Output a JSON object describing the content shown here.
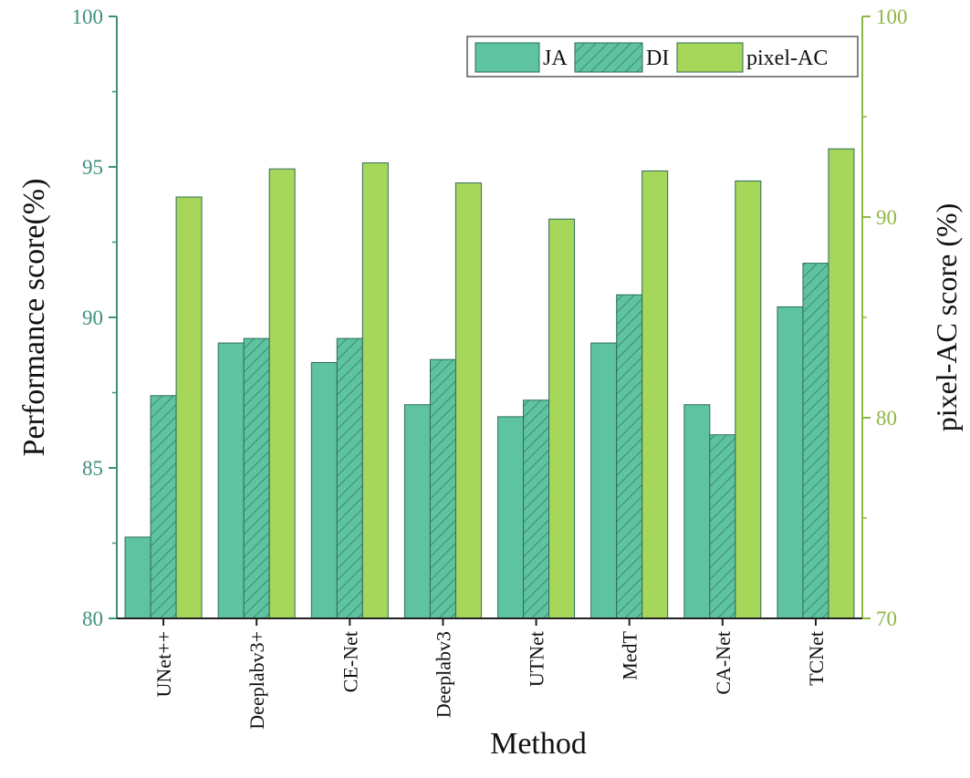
{
  "chart_data": {
    "type": "bar",
    "xlabel": "Method",
    "ylabel": "Performance score(%)",
    "y2label": "pixel-AC score (%)",
    "categories": [
      "UNet++",
      "Deeplabv3+",
      "CE-Net",
      "Deeplabv3",
      "UTNet",
      "MedT",
      "CA-Net",
      "TCNet"
    ],
    "ylim": [
      80,
      100
    ],
    "y2lim": [
      70,
      100
    ],
    "yticks": [
      "80",
      "85",
      "90",
      "95",
      "100"
    ],
    "y2ticks": [
      "70",
      "80",
      "90",
      "100"
    ],
    "series": [
      {
        "name": "JA",
        "axis": "left",
        "pattern": "solid",
        "color": "#5ec3a0",
        "values": [
          82.7,
          89.15,
          88.5,
          87.1,
          86.7,
          89.15,
          87.1,
          90.35
        ]
      },
      {
        "name": "DI",
        "axis": "left",
        "pattern": "hatched",
        "color": "#5ec3a0",
        "values": [
          87.4,
          89.3,
          89.3,
          88.6,
          87.25,
          90.75,
          86.1,
          91.8
        ]
      },
      {
        "name": "pixel-AC",
        "axis": "right",
        "pattern": "solid",
        "color": "#a6d65a",
        "values": [
          91.0,
          92.4,
          92.7,
          91.7,
          89.9,
          92.3,
          91.8,
          93.4
        ]
      }
    ],
    "left_axis_color": "#3f8f7f",
    "right_axis_color": "#8fb842",
    "legend_position": "top-right",
    "grid": false
  }
}
